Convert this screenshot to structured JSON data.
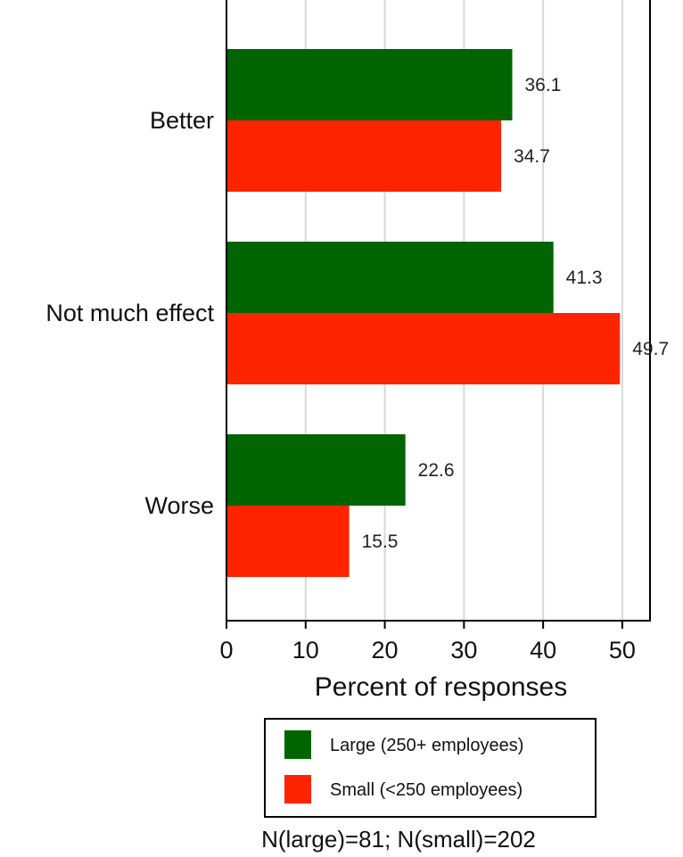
{
  "chart_data": {
    "type": "bar",
    "orientation": "horizontal",
    "categories": [
      "Better",
      "Not much effect",
      "Worse"
    ],
    "series": [
      {
        "name": "Large (250+ employees)",
        "color": "#006400",
        "values": [
          36.1,
          41.3,
          22.6
        ]
      },
      {
        "name": "Small (<250 employees)",
        "color": "#ff2400",
        "values": [
          34.7,
          49.7,
          15.5
        ]
      }
    ],
    "xlabel": "Percent of responses",
    "xlim": [
      0,
      53.5
    ],
    "xticks": [
      0,
      10,
      20,
      30,
      40,
      50
    ],
    "grid": true,
    "legend_position": "bottom",
    "note": "N(large)=81; N(small)=202"
  }
}
